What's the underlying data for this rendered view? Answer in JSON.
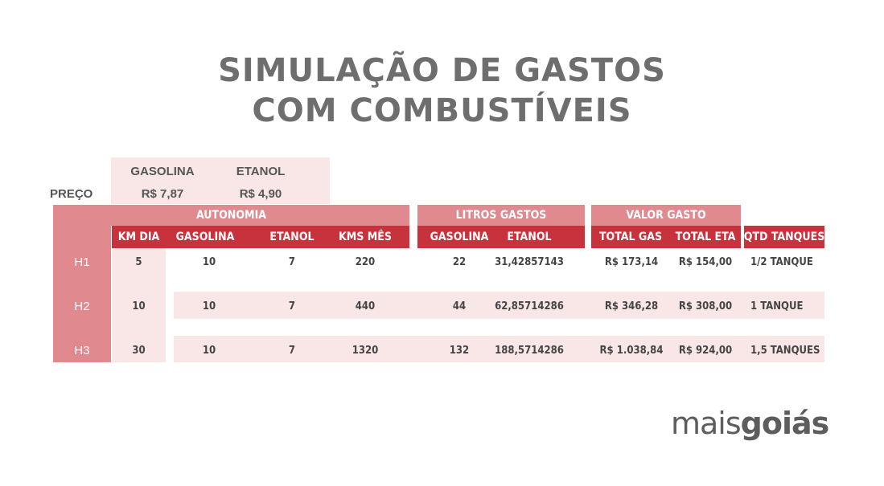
{
  "title": {
    "line1": "SIMULAÇÃO DE GASTOS",
    "line2": "COM COMBUSTÍVEIS"
  },
  "prices": {
    "label": "PREÇO",
    "gasolina_header": "GASOLINA",
    "etanol_header": "ETANOL",
    "gasolina_value": "R$ 7,87",
    "etanol_value": "R$ 4,90"
  },
  "groups": {
    "autonomia": "AUTONOMIA",
    "litros": "LITROS GASTOS",
    "valor": "VALOR GASTO"
  },
  "columns": {
    "km_dia": "KM DIA",
    "aut_gasolina": "GASOLINA",
    "aut_etanol": "ETANOL",
    "kms_mes": "KMS MÊS",
    "lit_gasolina": "GASOLINA",
    "lit_etanol": "ETANOL",
    "total_gas": "TOTAL GAS",
    "total_eta": "TOTAL ETA",
    "qtd": "QTD TANQUES"
  },
  "rows": [
    {
      "label": "H1",
      "km_dia": "5",
      "aut_gasolina": "10",
      "aut_etanol": "7",
      "kms_mes": "220",
      "lit_gasolina": "22",
      "lit_etanol": "31,42857143",
      "total_gas": "R$ 173,14",
      "total_eta": "R$ 154,00",
      "qtd": "1/2 TANQUE"
    },
    {
      "label": "H2",
      "km_dia": "10",
      "aut_gasolina": "10",
      "aut_etanol": "7",
      "kms_mes": "440",
      "lit_gasolina": "44",
      "lit_etanol": "62,85714286",
      "total_gas": "R$ 346,28",
      "total_eta": "R$ 308,00",
      "qtd": "1 TANQUE"
    },
    {
      "label": "H3",
      "km_dia": "30",
      "aut_gasolina": "10",
      "aut_etanol": "7",
      "kms_mes": "1320",
      "lit_gasolina": "132",
      "lit_etanol": "188,5714286",
      "total_gas": "R$ 1.038,84",
      "total_eta": "R$ 924,00",
      "qtd": "1,5 TANQUES"
    }
  ],
  "logo": {
    "part1": "mais",
    "part2": "goiás"
  },
  "colors": {
    "header_red": "#c8323d",
    "group_pink": "#e0898f",
    "light_pink": "#f9e7e8",
    "title_grey": "#6e6e6e"
  }
}
